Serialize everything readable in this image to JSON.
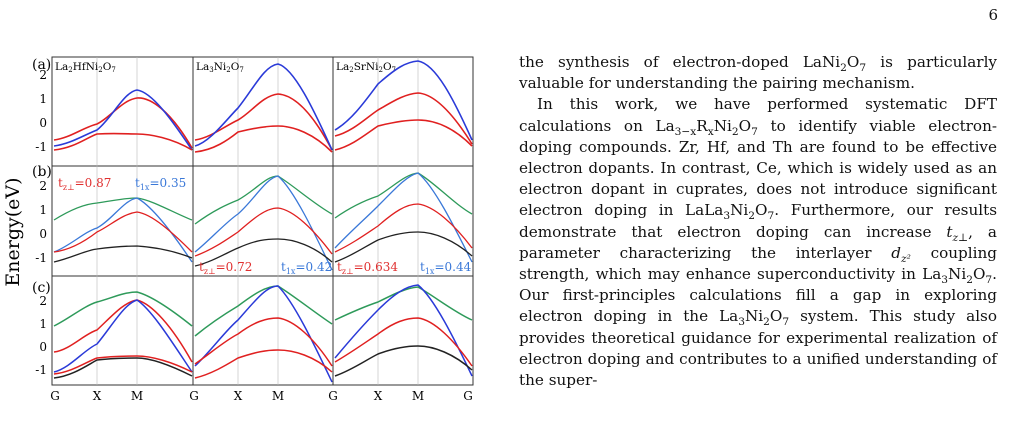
{
  "page_number": "6",
  "figure": {
    "ylabel": "Energy(eV)",
    "row_labels": [
      "(a)",
      "(b)",
      "(c)"
    ],
    "column_titles": [
      "La2HfNi2O7",
      "La3Ni2O7",
      "La2SrNi2O7"
    ],
    "y_ticks": [
      "2",
      "1",
      "0",
      "-1"
    ],
    "x_ticks": [
      "G",
      "X",
      "M",
      "G"
    ],
    "hopping": {
      "col1_tz": "t",
      "col1_tz_val": "=0.87",
      "col1_tx": "t",
      "col1_tx_val": "=0.35",
      "col2_tz": "t",
      "col2_tz_val": "=0.72",
      "col2_tx": "t",
      "col2_tx_val": "=0.42",
      "col3_tz": "t",
      "col3_tz_val": "=0.634",
      "col3_tx": "t",
      "col3_tx_val": "=0.44",
      "sub_tz": "z⊥",
      "sub_tx": "1x"
    },
    "colors": {
      "red": "#e02020",
      "blue": "#2a3ad8",
      "green": "#2e9a5a",
      "black": "#222222",
      "tz_label": "#e03030",
      "tx_label": "#3a78d8"
    }
  },
  "text": {
    "p1_a": "the synthesis of electron-doped La",
    "p1_b": " is particularly valuable for understanding the pairing mechanism.",
    "p2_a": "In this work, we have performed systematic DFT calculations on La",
    "p2_b": " to identify viable electron-doping compounds. Zr, Hf, and Th are found to be effective electron dopants. In contrast, Ce, which is widely used as an electron dopant in cuprates, does not introduce significant electron doping in La",
    "p2_c": ". Furthermore, our results demonstrate that electron doping can increase ",
    "p2_d": ", a parameter characterizing the interlayer ",
    "p2_e": " coupling strength, which may enhance superconductivity in La",
    "p2_f": ". Our first-principles calculations fill a gap in exploring electron doping in the La",
    "p2_g": " system. This study also provides theoretical guidance for experimental realization of electron doping and contributes to a unified understanding of the super-"
  }
}
